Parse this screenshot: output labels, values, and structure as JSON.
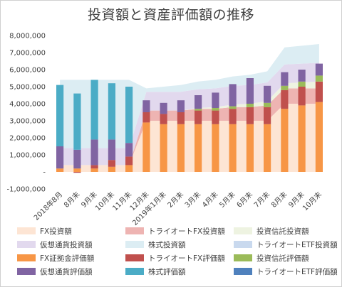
{
  "chart_data": {
    "type": "bar",
    "title": "投資額と資産評価額の推移",
    "ylim": [
      -1000000,
      8000000
    ],
    "yticks": [
      "-1,000,000",
      "-",
      "1,000,000",
      "2,000,000",
      "3,000,000",
      "4,000,000",
      "5,000,000",
      "6,000,000",
      "7,000,000",
      "8,000,000"
    ],
    "grid": false,
    "legend_position": "bottom",
    "categories": [
      "2018年8月",
      "8月末",
      "9月末",
      "10月末",
      "11月末",
      "12月末",
      "2019年1月末",
      "2月末",
      "3月末",
      "4月末",
      "5月末",
      "6月末",
      "7月末",
      "8月末",
      "9月末",
      "10月末"
    ],
    "area_series": [
      {
        "name": "FX投資額",
        "color": "#fde5d4",
        "values": [
          400000,
          400000,
          400000,
          400000,
          400000,
          3000000,
          3000000,
          3000000,
          3000000,
          3000000,
          3000000,
          3000000,
          3000000,
          4000000,
          4000000,
          4000000
        ]
      },
      {
        "name": "トライオートFX投資額",
        "color": "#eeb4b2",
        "values": [
          0,
          0,
          0,
          0,
          0,
          600000,
          600000,
          600000,
          700000,
          700000,
          800000,
          800000,
          900000,
          900000,
          900000,
          900000
        ]
      },
      {
        "name": "投資信託投資額",
        "color": "#eef3e1",
        "values": [
          0,
          0,
          0,
          0,
          0,
          0,
          0,
          0,
          50000,
          100000,
          150000,
          200000,
          250000,
          300000,
          350000,
          400000
        ]
      },
      {
        "name": "仮想通貨投資額",
        "color": "#e2d9ee",
        "values": [
          1000000,
          1000000,
          1000000,
          1000000,
          1000000,
          1100000,
          1100000,
          1100000,
          1100000,
          1100000,
          1100000,
          1100000,
          1100000,
          1100000,
          1100000,
          1100000
        ]
      },
      {
        "name": "株式投資額",
        "color": "#dcedf3",
        "values": [
          4000000,
          4000000,
          4000000,
          4000000,
          4000000,
          200000,
          300000,
          400000,
          450000,
          500000,
          550000,
          600000,
          650000,
          1000000,
          1050000,
          1100000
        ]
      },
      {
        "name": "トライオートETF投資額",
        "color": "#c9d9ee",
        "values": [
          0,
          0,
          0,
          0,
          0,
          0,
          0,
          0,
          0,
          0,
          0,
          0,
          0,
          0,
          0,
          0
        ]
      }
    ],
    "bar_series": [
      {
        "name": "FX証拠金評価額",
        "color": "#f79646",
        "values": [
          200000,
          200000,
          200000,
          300000,
          400000,
          2900000,
          2800000,
          2800000,
          2800000,
          2800000,
          2800000,
          2800000,
          2800000,
          3700000,
          3900000,
          4100000
        ]
      },
      {
        "name": "トライオートFX評価額",
        "color": "#c0504d",
        "values": [
          0,
          -50000,
          200000,
          400000,
          500000,
          600000,
          600000,
          700000,
          800000,
          800000,
          900000,
          1000000,
          1000000,
          1100000,
          1100000,
          1200000
        ]
      },
      {
        "name": "投資信託評価額",
        "color": "#9bbb59",
        "values": [
          0,
          0,
          0,
          0,
          0,
          0,
          0,
          0,
          100000,
          150000,
          150000,
          200000,
          250000,
          250000,
          300000,
          350000
        ]
      },
      {
        "name": "仮想通貨評価額",
        "color": "#8064a2",
        "values": [
          1300000,
          1100000,
          1500000,
          1200000,
          800000,
          700000,
          650000,
          700000,
          800000,
          900000,
          1300000,
          1500000,
          1000000,
          800000,
          700000,
          700000
        ]
      },
      {
        "name": "株式評価額",
        "color": "#4bacc6",
        "values": [
          3600000,
          3300000,
          3500000,
          3300000,
          3300000,
          0,
          0,
          0,
          0,
          0,
          0,
          0,
          0,
          0,
          0,
          0
        ]
      },
      {
        "name": "トライオートETF評価額",
        "color": "#4f81bd",
        "values": [
          0,
          0,
          0,
          0,
          0,
          0,
          0,
          0,
          0,
          0,
          0,
          0,
          0,
          0,
          0,
          0
        ]
      }
    ],
    "legend": [
      {
        "name": "FX投資額",
        "color": "#fde5d4"
      },
      {
        "name": "トライオートFX投資額",
        "color": "#eeb4b2"
      },
      {
        "name": "投資信託投資額",
        "color": "#eef3e1"
      },
      {
        "name": "仮想通貨投資額",
        "color": "#e2d9ee"
      },
      {
        "name": "株式投資額",
        "color": "#dcedf3"
      },
      {
        "name": "トライオートETF投資額",
        "color": "#c9d9ee"
      },
      {
        "name": "FX証拠金評価額",
        "color": "#f79646"
      },
      {
        "name": "トライオートFX評価額",
        "color": "#c0504d"
      },
      {
        "name": "投資信託評価額",
        "color": "#9bbb59"
      },
      {
        "name": "仮想通貨評価額",
        "color": "#8064a2"
      },
      {
        "name": "株式評価額",
        "color": "#4bacc6"
      },
      {
        "name": "トライオートETF評価額",
        "color": "#4f81bd"
      }
    ]
  }
}
